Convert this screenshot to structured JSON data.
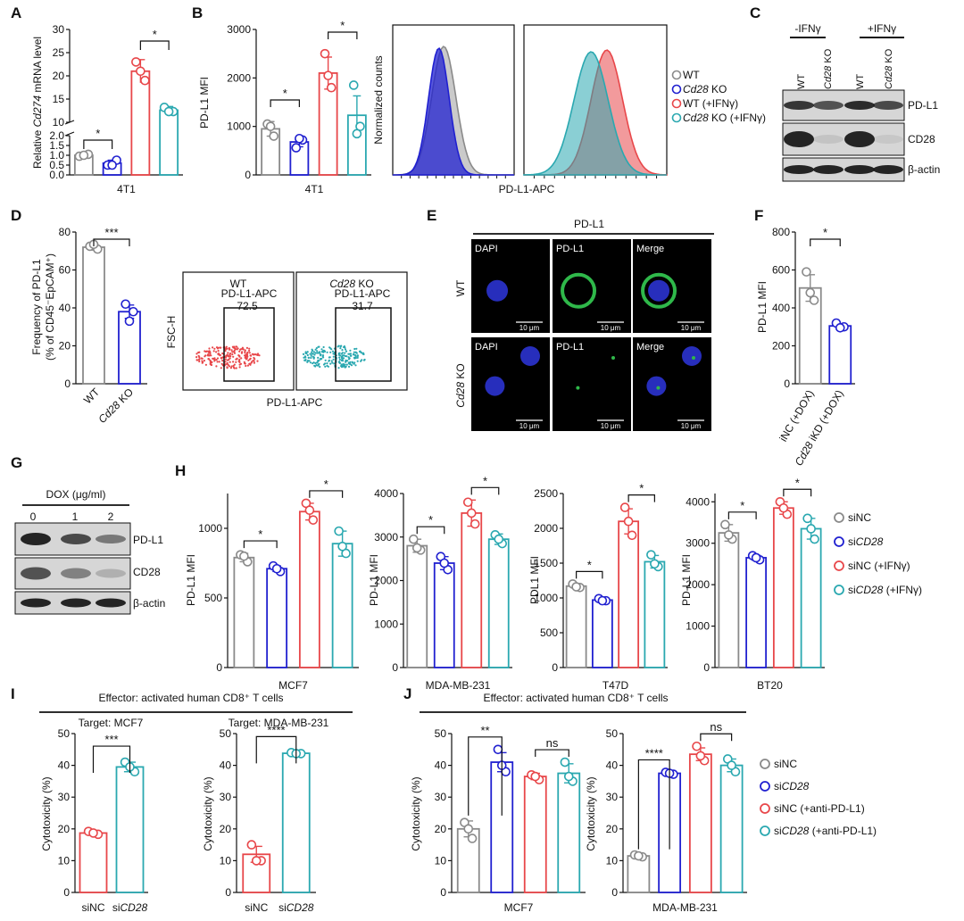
{
  "colors": {
    "grey": "#8a8a8a",
    "blue": "#2020d0",
    "red": "#e8474a",
    "teal": "#2aa8b0",
    "dark": "#111111"
  },
  "panels": {
    "A": {
      "letter": "A",
      "ylabel_pre": "Relative ",
      "ylabel_gene": "Cd274",
      "ylabel_post": " mRNA level",
      "xlabel": "4T1",
      "star1": "*",
      "star2": "*"
    },
    "B": {
      "letter": "B",
      "ylabel": "PD-L1 MFI",
      "xlabel": "4T1",
      "star1": "*",
      "star2": "*",
      "hist_ylabel": "Normalized counts",
      "hist_xlabel": "PD-L1-APC",
      "legend": [
        {
          "pre": "",
          "ital": "",
          "post": "WT",
          "color": "grey"
        },
        {
          "pre": "",
          "ital": "Cd28",
          "post": " KO",
          "color": "blue"
        },
        {
          "pre": "",
          "ital": "",
          "post": "WT (+IFNγ)",
          "color": "red"
        },
        {
          "pre": "",
          "ital": "Cd28",
          "post": " KO (+IFNγ)",
          "color": "teal"
        }
      ]
    },
    "C": {
      "letter": "C",
      "group1": "-IFNγ",
      "group2": "+IFNγ",
      "lanes": [
        "WT",
        "Cd28 KO",
        "WT",
        "Cd28 KO"
      ],
      "bands": [
        "PD-L1",
        "CD28",
        "β-actin"
      ]
    },
    "D": {
      "letter": "D",
      "ylabel1": "Frequency of PD-L1",
      "ylabel2": "(% of CD45⁻EpCAM⁺)",
      "star": "***",
      "x_wt": "WT",
      "x_ko_ital": "Cd28",
      "x_ko_post": " KO",
      "flow_t1": "WT",
      "flow_t2_ital": "Cd28",
      "flow_t2_post": " KO",
      "gate_label": "PD-L1-APC",
      "gate1_value": "72.5",
      "gate2_value": "31.7",
      "flow_ylabel": "FSC-H",
      "flow_xlabel": "PD-L1-APC"
    },
    "E": {
      "letter": "E",
      "title": "PD-L1",
      "cols": [
        "DAPI",
        "PD-L1",
        "Merge"
      ],
      "row1": "WT",
      "row2_ital": "Cd28",
      "row2_post": " KO",
      "scale": "10 μm"
    },
    "F": {
      "letter": "F",
      "ylabel": "PD-L1 MFI",
      "star": "*",
      "x1": "iNC (+DOX)",
      "x2_ital": "Cd28",
      "x2_post": " iKD (+DOX)"
    },
    "G": {
      "letter": "G",
      "title": "DOX (μg/ml)",
      "doses": [
        "0",
        "1",
        "2"
      ],
      "bands": [
        "PD-L1",
        "CD28",
        "β-actin"
      ]
    },
    "H": {
      "letter": "H",
      "legend": [
        {
          "pre": "si",
          "ital": "",
          "post": "NC",
          "color": "grey"
        },
        {
          "pre": "si",
          "ital": "CD28",
          "post": "",
          "color": "blue"
        },
        {
          "pre": "si",
          "ital": "",
          "post": "NC (+IFNγ)",
          "color": "red"
        },
        {
          "pre": "si",
          "ital": "CD28",
          "post": " (+IFNγ)",
          "color": "teal"
        }
      ]
    },
    "I": {
      "letter": "I",
      "effector": "Effector: activated human CD8⁺ T cells",
      "t1": "Target: MCF7",
      "t2": "Target: MDA-MB-231",
      "ylabel": "Cytotoxicity (%)",
      "x1": "siNC",
      "x2_pre": "si",
      "x2_ital": "CD28"
    },
    "J": {
      "letter": "J",
      "effector": "Effector: activated human CD8⁺ T cells",
      "ylabel": "Cytotoxicity (%)",
      "legend": [
        {
          "pre": "si",
          "ital": "",
          "post": "NC",
          "color": "grey"
        },
        {
          "pre": "si",
          "ital": "CD28",
          "post": "",
          "color": "blue"
        },
        {
          "pre": "si",
          "ital": "",
          "post": "NC (+anti-PD-L1)",
          "color": "red"
        },
        {
          "pre": "si",
          "ital": "CD28",
          "post": " (+anti-PD-L1)",
          "color": "teal"
        }
      ]
    }
  },
  "chart_data": [
    {
      "id": "A",
      "type": "bar",
      "xlabel": "4T1",
      "ylabel": "Relative Cd274 mRNA level",
      "yticks": [
        0.0,
        0.5,
        1.0,
        1.5,
        2.0,
        10,
        15,
        20,
        25,
        30
      ],
      "broken_axis": [
        2.0,
        10
      ],
      "series": [
        {
          "name": "WT",
          "value": 1.0,
          "err": 0.1,
          "points": [
            0.95,
            1.05,
            1.0
          ]
        },
        {
          "name": "Cd28 KO",
          "value": 0.6,
          "err": 0.15,
          "points": [
            0.5,
            0.75,
            0.5
          ]
        },
        {
          "name": "WT (+IFNγ)",
          "value": 21,
          "err": 2.5,
          "points": [
            23,
            19,
            21
          ]
        },
        {
          "name": "Cd28 KO (+IFNγ)",
          "value": 12.6,
          "err": 0.8,
          "points": [
            13.2,
            12.3,
            12.3
          ]
        }
      ],
      "significance": [
        "*",
        "*"
      ]
    },
    {
      "id": "B",
      "type": "bar",
      "xlabel": "4T1",
      "ylabel": "PD-L1 MFI",
      "ylim": [
        0,
        3000
      ],
      "yticks": [
        0,
        1000,
        2000,
        3000
      ],
      "series": [
        {
          "name": "WT",
          "value": 950,
          "err": 150,
          "points": [
            1050,
            800,
            1000
          ]
        },
        {
          "name": "Cd28 KO",
          "value": 680,
          "err": 100,
          "points": [
            560,
            720,
            750
          ]
        },
        {
          "name": "WT (+IFNγ)",
          "value": 2100,
          "err": 330,
          "points": [
            2500,
            1800,
            2050
          ]
        },
        {
          "name": "Cd28 KO (+IFNγ)",
          "value": 1230,
          "err": 400,
          "points": [
            1850,
            1000,
            850
          ]
        }
      ],
      "significance": [
        "*",
        "*"
      ]
    },
    {
      "id": "D",
      "type": "bar",
      "ylim": [
        0,
        80
      ],
      "yticks": [
        0,
        20,
        40,
        60,
        80
      ],
      "series": [
        {
          "name": "WT",
          "value": 72,
          "err": 1.5,
          "points": [
            72.5,
            71,
            73.5
          ]
        },
        {
          "name": "Cd28 KO",
          "value": 38,
          "err": 3.5,
          "points": [
            42,
            38,
            33
          ]
        }
      ],
      "significance": "***"
    },
    {
      "id": "F",
      "type": "bar",
      "ylabel": "PD-L1 MFI",
      "ylim": [
        0,
        800
      ],
      "yticks": [
        0,
        200,
        400,
        600,
        800
      ],
      "series": [
        {
          "name": "iNC (+DOX)",
          "value": 505,
          "err": 70,
          "points": [
            590,
            440,
            480
          ]
        },
        {
          "name": "Cd28 iKD (+DOX)",
          "value": 305,
          "err": 12,
          "points": [
            320,
            300,
            295
          ]
        }
      ],
      "significance": "*"
    },
    {
      "id": "H-MCF7",
      "type": "bar",
      "xlabel": "MCF7",
      "ylabel": "PD-L1 MFI",
      "ylim": [
        0,
        1250
      ],
      "yticks": [
        0,
        500,
        1000
      ],
      "series": [
        {
          "name": "siNC",
          "value": 790,
          "err": 30,
          "points": [
            810,
            760,
            800
          ]
        },
        {
          "name": "siCD28",
          "value": 710,
          "err": 20,
          "points": [
            730,
            690,
            710
          ]
        },
        {
          "name": "siNC (+IFNγ)",
          "value": 1120,
          "err": 60,
          "points": [
            1180,
            1060,
            1130
          ]
        },
        {
          "name": "siCD28 (+IFNγ)",
          "value": 890,
          "err": 90,
          "points": [
            980,
            820,
            870
          ]
        }
      ],
      "significance": [
        "*",
        "*"
      ]
    },
    {
      "id": "H-MDA-MB-231",
      "type": "bar",
      "xlabel": "MDA-MB-231",
      "ylabel": "PD-L1 MFI",
      "ylim": [
        0,
        4000
      ],
      "yticks": [
        0,
        1000,
        2000,
        3000,
        4000
      ],
      "series": [
        {
          "name": "siNC",
          "value": 2800,
          "err": 150,
          "points": [
            2950,
            2700,
            2750
          ]
        },
        {
          "name": "siCD28",
          "value": 2400,
          "err": 150,
          "points": [
            2550,
            2250,
            2400
          ]
        },
        {
          "name": "siNC (+IFNγ)",
          "value": 3550,
          "err": 300,
          "points": [
            3800,
            3300,
            3550
          ]
        },
        {
          "name": "siCD28 (+IFNγ)",
          "value": 2950,
          "err": 120,
          "points": [
            3050,
            2850,
            2950
          ]
        }
      ],
      "significance": [
        "*",
        "*"
      ]
    },
    {
      "id": "H-T47D",
      "type": "bar",
      "xlabel": "T47D",
      "ylabel": "PDL1 MFI",
      "ylim": [
        0,
        2500
      ],
      "yticks": [
        0,
        500,
        1000,
        1500,
        2000,
        2500
      ],
      "series": [
        {
          "name": "siNC",
          "value": 1170,
          "err": 30,
          "points": [
            1200,
            1150,
            1160
          ]
        },
        {
          "name": "siCD28",
          "value": 970,
          "err": 20,
          "points": [
            990,
            960,
            960
          ]
        },
        {
          "name": "siNC (+IFNγ)",
          "value": 2100,
          "err": 180,
          "points": [
            2300,
            1900,
            2100
          ]
        },
        {
          "name": "siCD28 (+IFNγ)",
          "value": 1520,
          "err": 90,
          "points": [
            1620,
            1450,
            1490
          ]
        }
      ],
      "significance": [
        "*",
        "*"
      ]
    },
    {
      "id": "H-BT20",
      "type": "bar",
      "xlabel": "BT20",
      "ylabel": "PD-L1 MFI",
      "ylim": [
        0,
        4200
      ],
      "yticks": [
        0,
        1000,
        2000,
        3000,
        4000
      ],
      "series": [
        {
          "name": "siNC",
          "value": 3250,
          "err": 200,
          "points": [
            3450,
            3100,
            3200
          ]
        },
        {
          "name": "siCD28",
          "value": 2650,
          "err": 60,
          "points": [
            2700,
            2600,
            2650
          ]
        },
        {
          "name": "siNC (+IFNγ)",
          "value": 3850,
          "err": 150,
          "points": [
            4000,
            3700,
            3850
          ]
        },
        {
          "name": "siCD28 (+IFNγ)",
          "value": 3350,
          "err": 250,
          "points": [
            3600,
            3100,
            3350
          ]
        }
      ],
      "significance": [
        "*",
        "*"
      ]
    },
    {
      "id": "I-MCF7",
      "type": "bar",
      "ylabel": "Cytotoxicity (%)",
      "ylim": [
        0,
        50
      ],
      "yticks": [
        0,
        10,
        20,
        30,
        40,
        50
      ],
      "series": [
        {
          "name": "siNC",
          "value": 18.7,
          "err": 0.6,
          "points": [
            19.2,
            18.3,
            18.7
          ]
        },
        {
          "name": "siCD28",
          "value": 39.5,
          "err": 1.5,
          "points": [
            41,
            38,
            39.5
          ]
        }
      ],
      "significance": "***"
    },
    {
      "id": "I-MDA-MB-231",
      "type": "bar",
      "ylabel": "Cytotoxicity (%)",
      "ylim": [
        0,
        50
      ],
      "yticks": [
        0,
        10,
        20,
        30,
        40,
        50
      ],
      "series": [
        {
          "name": "siNC",
          "value": 12,
          "err": 2.5,
          "points": [
            15,
            10,
            10
          ]
        },
        {
          "name": "siCD28",
          "value": 43.8,
          "err": 0.3,
          "points": [
            44,
            43.7,
            43.7
          ]
        }
      ],
      "significance": "****"
    },
    {
      "id": "J-MCF7",
      "type": "bar",
      "xlabel": "MCF7",
      "ylabel": "Cytotoxicity (%)",
      "ylim": [
        0,
        50
      ],
      "yticks": [
        0,
        10,
        20,
        30,
        40,
        50
      ],
      "series": [
        {
          "name": "siNC",
          "value": 20,
          "err": 2.5,
          "points": [
            22,
            17,
            20
          ]
        },
        {
          "name": "siCD28",
          "value": 41,
          "err": 3,
          "points": [
            45,
            38,
            40
          ]
        },
        {
          "name": "siNC (+anti-PD-L1)",
          "value": 36.5,
          "err": 1,
          "points": [
            37,
            35.5,
            36.5
          ]
        },
        {
          "name": "siCD28 (+anti-PD-L1)",
          "value": 37.5,
          "err": 3,
          "points": [
            41,
            35,
            36.5
          ]
        }
      ],
      "significance": [
        "**",
        "ns"
      ]
    },
    {
      "id": "J-MDA-MB-231",
      "type": "bar",
      "xlabel": "MDA-MB-231",
      "ylabel": "Cytotoxicity (%)",
      "ylim": [
        0,
        50
      ],
      "yticks": [
        0,
        10,
        20,
        30,
        40,
        50
      ],
      "series": [
        {
          "name": "siNC",
          "value": 11.5,
          "err": 0.4,
          "points": [
            11.8,
            11.2,
            11.5
          ]
        },
        {
          "name": "siCD28",
          "value": 37.5,
          "err": 0.4,
          "points": [
            37.8,
            37.2,
            37.5
          ]
        },
        {
          "name": "siNC (+anti-PD-L1)",
          "value": 43.5,
          "err": 2,
          "points": [
            46,
            41.5,
            43
          ]
        },
        {
          "name": "siCD28 (+anti-PD-L1)",
          "value": 40,
          "err": 2,
          "points": [
            42,
            38,
            40
          ]
        }
      ],
      "significance": [
        "****",
        "ns"
      ]
    }
  ]
}
